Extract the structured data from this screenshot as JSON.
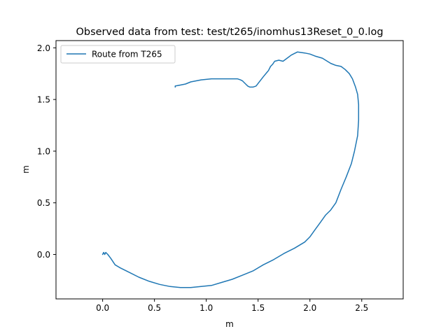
{
  "chart_data": {
    "type": "line",
    "title": "Observed data from test: test/t265/inomhus13Reset_0_0.log",
    "xlabel": "m",
    "ylabel": "m",
    "xlim": [
      -0.45,
      2.9
    ],
    "ylim": [
      -0.43,
      2.07
    ],
    "xticks": [
      0.0,
      0.5,
      1.0,
      1.5,
      2.0,
      2.5
    ],
    "xtick_labels": [
      "0.0",
      "0.5",
      "1.0",
      "1.5",
      "2.0",
      "2.5"
    ],
    "yticks": [
      0.0,
      0.5,
      1.0,
      1.5,
      2.0
    ],
    "ytick_labels": [
      "0.0",
      "0.5",
      "1.0",
      "1.5",
      "2.0"
    ],
    "grid": false,
    "legend": "upper-left",
    "series": [
      {
        "name": "Route from T265",
        "color": "#1f77b4",
        "x": [
          0.0,
          0.01,
          0.02,
          0.03,
          0.05,
          0.08,
          0.12,
          0.17,
          0.25,
          0.35,
          0.45,
          0.55,
          0.65,
          0.75,
          0.85,
          0.95,
          1.05,
          1.15,
          1.25,
          1.35,
          1.45,
          1.55,
          1.65,
          1.75,
          1.85,
          1.95,
          2.0,
          2.05,
          2.1,
          2.15,
          2.2,
          2.25,
          2.3,
          2.35,
          2.4,
          2.43,
          2.46,
          2.47,
          2.47,
          2.46,
          2.44,
          2.41,
          2.38,
          2.34,
          2.3,
          2.25,
          2.2,
          2.12,
          2.05,
          2.0,
          1.95,
          1.88,
          1.82,
          1.78,
          1.74,
          1.7,
          1.66,
          1.64,
          1.62,
          1.6,
          1.55,
          1.48,
          1.45,
          1.42,
          1.4,
          1.38,
          1.35,
          1.33,
          1.3,
          1.25,
          1.15,
          1.05,
          0.95,
          0.85,
          0.8,
          0.75,
          0.7,
          0.7
        ],
        "y": [
          0.0,
          0.02,
          0.0,
          0.02,
          0.0,
          -0.04,
          -0.1,
          -0.13,
          -0.17,
          -0.22,
          -0.26,
          -0.29,
          -0.31,
          -0.32,
          -0.32,
          -0.31,
          -0.3,
          -0.27,
          -0.24,
          -0.2,
          -0.16,
          -0.1,
          -0.05,
          0.01,
          0.06,
          0.12,
          0.17,
          0.24,
          0.31,
          0.38,
          0.43,
          0.5,
          0.63,
          0.75,
          0.88,
          1.0,
          1.15,
          1.3,
          1.45,
          1.55,
          1.62,
          1.7,
          1.75,
          1.79,
          1.82,
          1.83,
          1.85,
          1.9,
          1.92,
          1.94,
          1.95,
          1.96,
          1.93,
          1.9,
          1.87,
          1.88,
          1.87,
          1.84,
          1.82,
          1.78,
          1.72,
          1.63,
          1.62,
          1.62,
          1.63,
          1.65,
          1.68,
          1.69,
          1.7,
          1.7,
          1.7,
          1.7,
          1.69,
          1.67,
          1.65,
          1.64,
          1.63,
          1.62
        ]
      }
    ]
  }
}
